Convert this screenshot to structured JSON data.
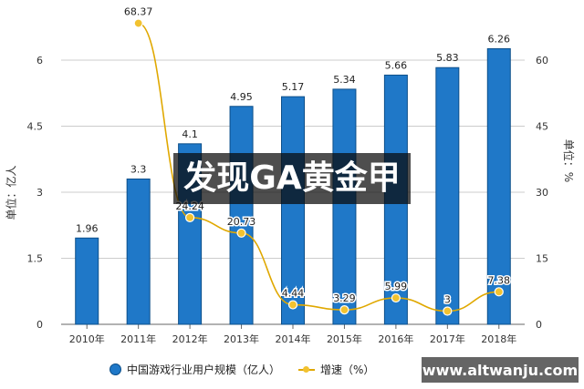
{
  "chart_data": {
    "type": "bar+line",
    "categories": [
      "2010年",
      "2011年",
      "2012年",
      "2013年",
      "2014年",
      "2015年",
      "2016年",
      "2017年",
      "2018年"
    ],
    "series": [
      {
        "name": "中国游戏行业用户规模（亿人）",
        "type": "bar",
        "axis": "left",
        "color": "#1f78c8",
        "values": [
          1.96,
          3.3,
          4.1,
          4.95,
          5.17,
          5.34,
          5.66,
          5.83,
          6.26
        ]
      },
      {
        "name": "增速（%）",
        "type": "line",
        "axis": "right",
        "color": "#e0a800",
        "values": [
          null,
          68.37,
          24.24,
          20.73,
          4.44,
          3.29,
          5.99,
          3,
          7.38
        ]
      }
    ],
    "left_axis": {
      "label": "单位：亿人",
      "ticks": [
        "0",
        "1.5",
        "3",
        "4.5",
        "6"
      ],
      "range": [
        0,
        7.5
      ]
    },
    "right_axis": {
      "label": "单位：%",
      "ticks": [
        "0",
        "15",
        "30",
        "45",
        "60"
      ],
      "range": [
        0,
        75
      ]
    },
    "grid": true,
    "legend": "bottom"
  },
  "overlay_text": "发现GA黄金甲",
  "watermark_url": "www.altwanju.com"
}
